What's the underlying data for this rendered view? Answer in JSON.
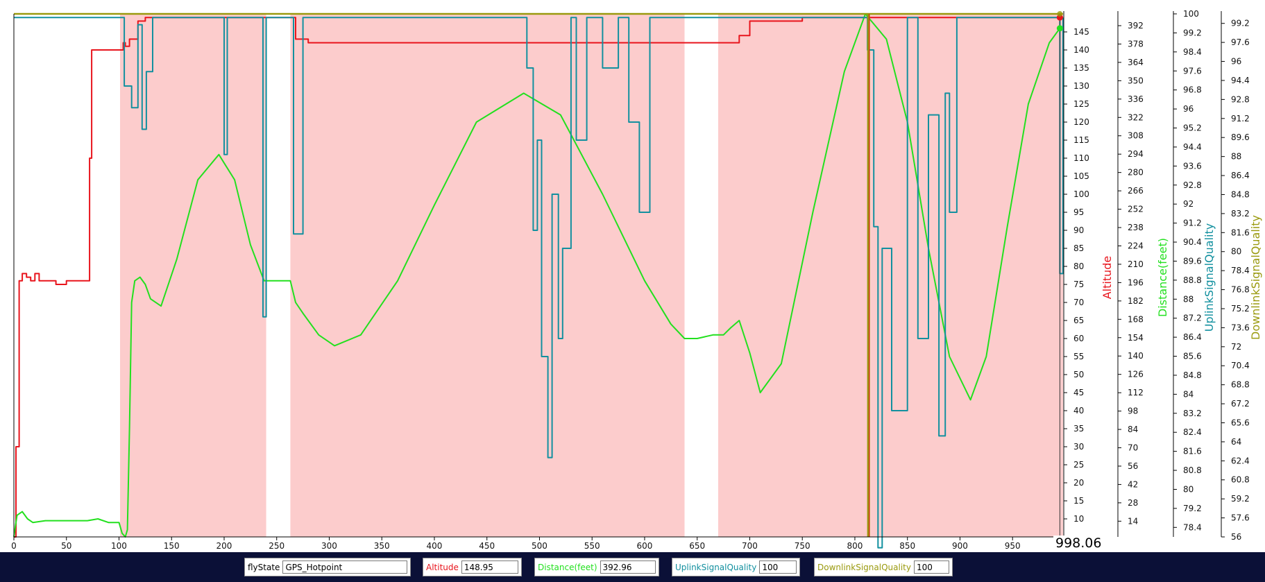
{
  "chart_data": {
    "type": "line",
    "x_axis": {
      "range": [
        0,
        998.06
      ],
      "ticks": [
        0,
        50,
        100,
        150,
        200,
        250,
        300,
        350,
        400,
        450,
        500,
        550,
        600,
        650,
        700,
        750,
        800,
        850,
        900,
        950
      ]
    },
    "cursor_x_label": "998.06",
    "shaded_intervals": [
      [
        101,
        240
      ],
      [
        263,
        638
      ],
      [
        670,
        998
      ]
    ],
    "vertical_markers": [
      813,
      995
    ],
    "y_axes": [
      {
        "id": "inner",
        "range": [
          5,
          150
        ],
        "ticks": [
          10,
          15,
          20,
          25,
          30,
          35,
          40,
          45,
          50,
          55,
          60,
          65,
          70,
          75,
          80,
          85,
          90,
          95,
          100,
          105,
          110,
          115,
          120,
          125,
          130,
          135,
          140,
          145
        ]
      },
      {
        "id": "altitude",
        "label": "Altitude",
        "color": "#e8141c",
        "range": [
          2,
          401
        ],
        "ticks": [
          14,
          28,
          42,
          56,
          70,
          84,
          98,
          112,
          126,
          140,
          154,
          168,
          182,
          196,
          210,
          224,
          238,
          252,
          266,
          280,
          294,
          308,
          322,
          336,
          350,
          364,
          378,
          392
        ]
      },
      {
        "id": "distance",
        "label": "Distance(feet)",
        "color": "#22e01e",
        "range": [
          78.0,
          100.0
        ],
        "ticks": [
          78.4,
          79.2,
          80,
          80.8,
          81.6,
          82.4,
          83.2,
          84,
          84.8,
          85.6,
          86.4,
          87.2,
          88,
          88.8,
          89.6,
          90.4,
          91.2,
          92,
          92.8,
          93.6,
          94.4,
          95.2,
          96,
          96.8,
          97.6,
          98.4,
          99.2,
          100
        ]
      },
      {
        "id": "uplink",
        "label": "UplinkSignalQuality",
        "color": "#12909f",
        "range": [
          56,
          100
        ],
        "ticks": [
          56,
          57.6,
          59.2,
          60.8,
          62.4,
          64,
          65.6,
          67.2,
          68.8,
          70.4,
          72,
          73.6,
          75.2,
          76.8,
          78.4,
          80,
          81.6,
          83.2,
          84.8,
          86.4,
          88,
          89.6,
          91.2,
          92.8,
          94.4,
          96,
          97.6,
          99.2
        ]
      },
      {
        "id": "downlink",
        "label": "DownlinkSignalQuality",
        "color": "#9a9a0e"
      }
    ],
    "series": [
      {
        "name": "Altitude",
        "axis": "inner",
        "color": "#e8141c",
        "x": [
          0,
          2,
          5,
          8,
          12,
          16,
          20,
          24,
          30,
          40,
          50,
          60,
          68,
          70,
          72,
          74,
          80,
          90,
          100,
          104,
          106,
          110,
          118,
          125,
          150,
          200,
          250,
          263,
          268,
          280,
          300,
          350,
          400,
          450,
          500,
          550,
          600,
          630,
          650,
          670,
          680,
          690,
          700,
          750,
          800,
          850,
          900,
          950,
          995,
          998
        ],
        "values": [
          5,
          30,
          76,
          78,
          77,
          76,
          78,
          76,
          76,
          75,
          76,
          76,
          76,
          76,
          110,
          140,
          140,
          140,
          140,
          142,
          141,
          143,
          148,
          149,
          149,
          149,
          149,
          149,
          143,
          142,
          142,
          142,
          142,
          142,
          142,
          142,
          142,
          142,
          142,
          142,
          142,
          144,
          148,
          149,
          149,
          149,
          149,
          149,
          149,
          149
        ]
      },
      {
        "name": "Distance(feet)",
        "axis": "inner",
        "color": "#22e01e",
        "x": [
          0,
          3,
          8,
          13,
          18,
          30,
          50,
          70,
          80,
          90,
          100,
          103,
          106,
          108,
          110,
          112,
          115,
          120,
          125,
          130,
          140,
          155,
          175,
          195,
          210,
          225,
          238,
          240,
          255,
          263,
          268,
          275,
          290,
          305,
          330,
          365,
          400,
          440,
          485,
          520,
          560,
          600,
          625,
          638,
          650,
          665,
          670,
          675,
          682,
          690,
          700,
          710,
          730,
          760,
          790,
          810,
          830,
          850,
          870,
          890,
          910,
          925,
          945,
          965,
          985,
          995
        ],
        "values": [
          5,
          11,
          12,
          10,
          9,
          9.5,
          9.5,
          9.5,
          10,
          9,
          9,
          6,
          5,
          7,
          35,
          70,
          76,
          77,
          75,
          71,
          69,
          82,
          104,
          111,
          104,
          86,
          76,
          76,
          76,
          76,
          70,
          67,
          61,
          58,
          61,
          76,
          97,
          120,
          128,
          122,
          100,
          76,
          64,
          60,
          60,
          61,
          61,
          61,
          63,
          65,
          56,
          45,
          53,
          95,
          134,
          150,
          143,
          120,
          85,
          55,
          43,
          55,
          91,
          125,
          142,
          146
        ]
      },
      {
        "name": "UplinkSignalQuality",
        "axis": "inner",
        "color": "#12909f",
        "x": [
          0,
          98,
          101,
          105,
          112,
          118,
          122,
          126,
          132,
          150,
          196,
          200,
          203,
          210,
          230,
          237,
          240,
          255,
          263,
          266,
          275,
          320,
          360,
          400,
          460,
          480,
          488,
          494,
          498,
          502,
          508,
          512,
          518,
          522,
          530,
          535,
          545,
          560,
          575,
          585,
          595,
          605,
          640,
          670,
          690,
          700,
          720,
          750,
          790,
          812,
          818,
          822,
          826,
          835,
          850,
          860,
          870,
          880,
          886,
          890,
          897,
          905,
          930,
          960,
          992,
          995,
          998
        ],
        "values": [
          149,
          149,
          149,
          130,
          124,
          147,
          118,
          134,
          149,
          149,
          149,
          111,
          149,
          149,
          149,
          66,
          149,
          149,
          149,
          89,
          149,
          149,
          149,
          149,
          149,
          149,
          135,
          90,
          115,
          55,
          27,
          100,
          60,
          85,
          149,
          115,
          149,
          135,
          149,
          120,
          95,
          149,
          149,
          149,
          149,
          149,
          149,
          149,
          149,
          140,
          91,
          2,
          85,
          40,
          149,
          60,
          122,
          33,
          128,
          95,
          149,
          149,
          149,
          149,
          149,
          78,
          149
        ]
      },
      {
        "name": "DownlinkSignalQuality",
        "axis": "inner",
        "color": "#9a9a0e",
        "x": [
          0,
          998
        ],
        "values": [
          150,
          150
        ]
      }
    ]
  },
  "bottom_bar": {
    "flystate": {
      "label": "flyState",
      "value": "GPS_Hotpoint"
    },
    "altitude": {
      "label": "Altitude",
      "value": "148.95"
    },
    "distance": {
      "label": "Distance(feet)",
      "value": "392.96"
    },
    "uplink": {
      "label": "UplinkSignalQuality",
      "value": "100"
    },
    "downlink": {
      "label": "DownlinkSignalQuality",
      "value": "100"
    }
  }
}
